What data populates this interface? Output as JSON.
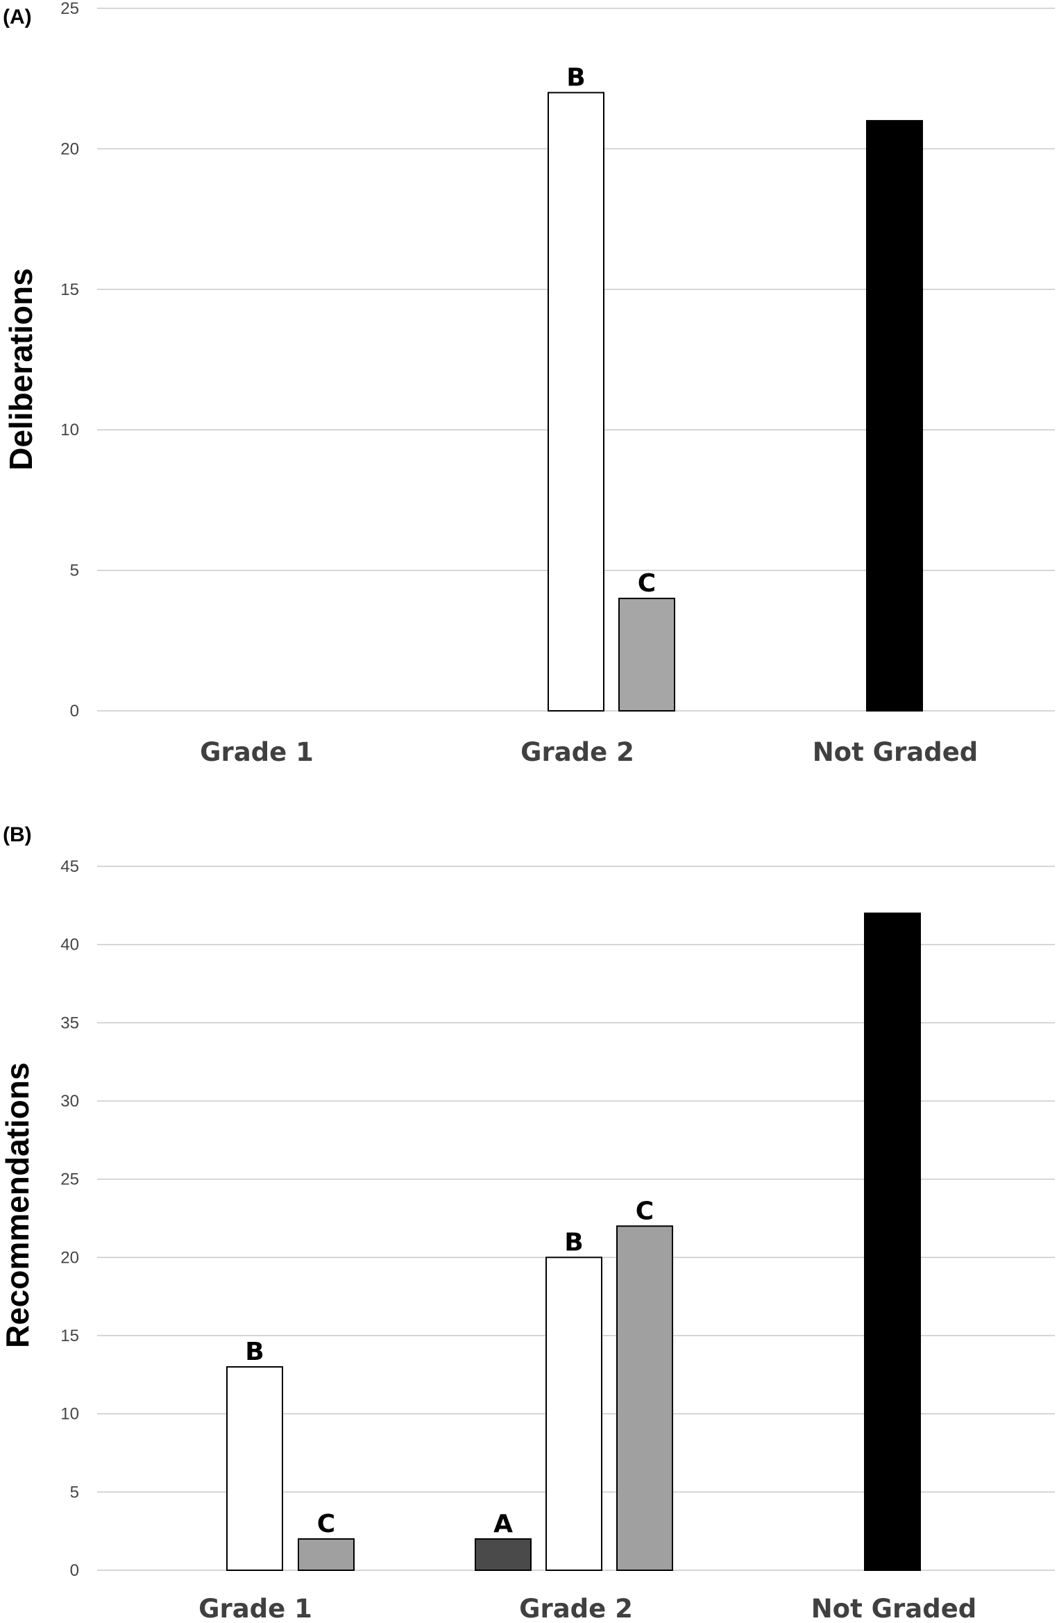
{
  "chart_data": [
    {
      "type": "bar",
      "panel_label": "(A)",
      "ylabel": "Deliberations",
      "xlabel": "",
      "categories": [
        "Grade 1",
        "Grade 2",
        "Not Graded"
      ],
      "ylim": [
        0,
        25
      ],
      "yticks": [
        0,
        5,
        10,
        15,
        20,
        25
      ],
      "grid": true,
      "bars": [
        {
          "category": "Grade 2",
          "label": "B",
          "value": 22,
          "color": "#ffffff"
        },
        {
          "category": "Grade 2",
          "label": "C",
          "value": 4,
          "color": "#a6a6a6"
        },
        {
          "category": "Not Graded",
          "label": "",
          "value": 21,
          "color": "#000000"
        }
      ]
    },
    {
      "type": "bar",
      "panel_label": "(B)",
      "ylabel": "Recommendations",
      "xlabel": "",
      "categories": [
        "Grade 1",
        "Grade 2",
        "Not Graded"
      ],
      "ylim": [
        0,
        45
      ],
      "yticks": [
        0,
        5,
        10,
        15,
        20,
        25,
        30,
        35,
        40,
        45
      ],
      "grid": true,
      "bars": [
        {
          "category": "Grade 1",
          "label": "B",
          "value": 13,
          "color": "#ffffff"
        },
        {
          "category": "Grade 1",
          "label": "C",
          "value": 2,
          "color": "#a0a0a0"
        },
        {
          "category": "Grade 2",
          "label": "A",
          "value": 2,
          "color": "#4a4a4a"
        },
        {
          "category": "Grade 2",
          "label": "B",
          "value": 20,
          "color": "#ffffff"
        },
        {
          "category": "Grade 2",
          "label": "C",
          "value": 22,
          "color": "#a0a0a0"
        },
        {
          "category": "Not Graded",
          "label": "",
          "value": 42,
          "color": "#000000"
        }
      ]
    }
  ]
}
